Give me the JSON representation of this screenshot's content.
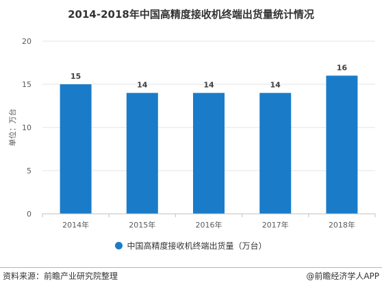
{
  "chart_data": {
    "type": "bar",
    "title": "2014-2018年中国高精度接收机终端出货量统计情况",
    "categories": [
      "2014年",
      "2015年",
      "2016年",
      "2017年",
      "2018年"
    ],
    "series": [
      {
        "name": "中国高精度接收机终端出货量（万台）",
        "values": [
          15,
          14,
          14,
          14,
          16
        ]
      }
    ],
    "data_labels": [
      "15",
      "14",
      "14",
      "14",
      "16"
    ],
    "ylabel": "单位：万台",
    "ylim": [
      0,
      20
    ],
    "yticks": [
      0,
      5,
      10,
      15,
      20
    ],
    "grid": true,
    "legend_position": "bottom",
    "bar_color": "#1a7cc9"
  },
  "footer": {
    "source": "资料来源：前瞻产业研究院整理",
    "brand": "@前瞻经济学人APP"
  }
}
